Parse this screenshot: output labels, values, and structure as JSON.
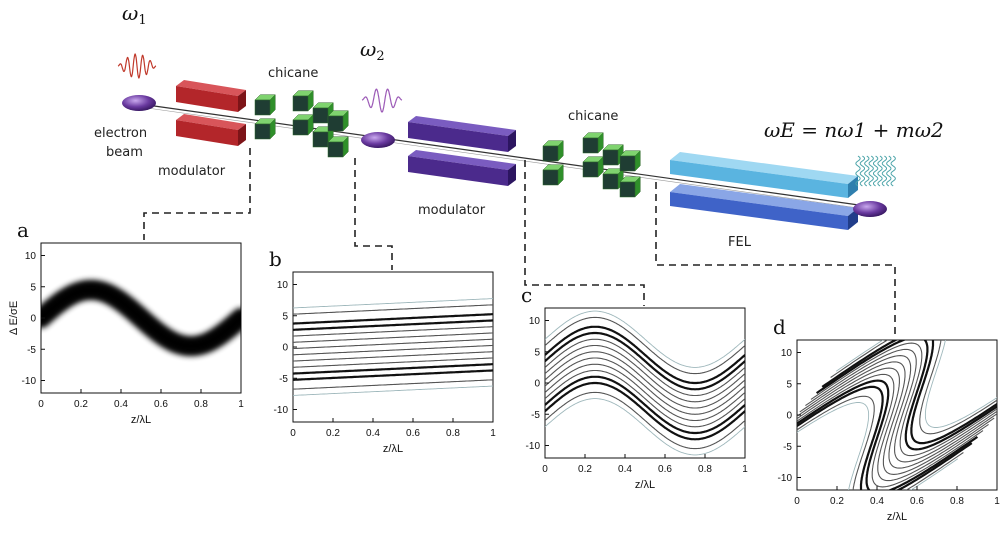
{
  "diagram": {
    "omega1": "ω",
    "omega1_sub": "1",
    "omega2": "ω",
    "omega2_sub": "2",
    "omega_e_formula": "ωE = nω1 + mω2",
    "label_electron": "electron",
    "label_beam": "beam",
    "label_modulator1": "modulator",
    "label_chicane1": "chicane",
    "label_modulator2": "modulator",
    "label_chicane2": "chicane",
    "label_fel": "FEL",
    "colors": {
      "modulator1": "#b3262a",
      "modulator2": "#4b2a8c",
      "fel": "#5ab4e0",
      "chicane": "#4fb548",
      "bunch": "#6a3aa0"
    }
  },
  "chart_data": [
    {
      "id": "a",
      "type": "heatmap",
      "letter": "a",
      "xlabel": "z/λL",
      "ylabel": "Δ E/σE",
      "xlim": [
        0,
        1
      ],
      "ylim": [
        -12,
        12
      ],
      "xticks": [
        "0",
        "0.2",
        "0.4",
        "0.6",
        "0.8",
        "1"
      ],
      "yticks": [
        "10",
        "5",
        "0",
        "-5",
        "-10"
      ],
      "ytick_values": [
        10,
        5,
        0,
        -5,
        -10
      ],
      "amplitude": 4.5
    },
    {
      "id": "b",
      "type": "line",
      "letter": "b",
      "xlabel": "z/λL",
      "xlim": [
        0,
        1
      ],
      "ylim": [
        -12,
        12
      ],
      "xticks": [
        "0",
        "0.2",
        "0.4",
        "0.6",
        "0.8",
        "1"
      ],
      "yticks": [
        "10",
        "5",
        "0",
        "-5",
        "-10"
      ],
      "ytick_values": [
        10,
        5,
        0,
        -5,
        -10
      ],
      "offsets": [
        -7,
        -6,
        -4.5,
        -3.5,
        -2.5,
        -1.5,
        -0.5,
        0.5,
        1.5,
        2.5,
        3.5,
        4.5,
        6,
        7
      ],
      "slope": 1.5
    },
    {
      "id": "c",
      "type": "line",
      "letter": "c",
      "xlabel": "z/λL",
      "xlim": [
        0,
        1
      ],
      "ylim": [
        -12,
        12
      ],
      "xticks": [
        "0",
        "0.2",
        "0.4",
        "0.6",
        "0.8",
        "1"
      ],
      "yticks": [
        "10",
        "5",
        "0",
        "-5",
        "-10"
      ],
      "ytick_values": [
        10,
        5,
        0,
        -5,
        -10
      ],
      "offsets": [
        -7,
        -6,
        -4.5,
        -3.5,
        -2.5,
        -1.5,
        -0.5,
        0.5,
        1.5,
        2.5,
        3.5,
        4.5,
        6,
        7
      ],
      "amplitude": 4.5
    },
    {
      "id": "d",
      "type": "line",
      "letter": "d",
      "xlabel": "z/λL",
      "xlim": [
        0,
        1
      ],
      "ylim": [
        -12,
        12
      ],
      "xticks": [
        "0",
        "0.2",
        "0.4",
        "0.6",
        "0.8",
        "1"
      ],
      "yticks": [
        "10",
        "5",
        "0",
        "-5",
        "-10"
      ],
      "ytick_values": [
        10,
        5,
        0,
        -5,
        -10
      ],
      "offsets": [
        -7,
        -6,
        -4.5,
        -3.5,
        -2.5,
        -1.5,
        -0.5,
        0.5,
        1.5,
        2.5,
        3.5,
        4.5,
        6,
        7
      ],
      "amplitude": 9
    }
  ]
}
